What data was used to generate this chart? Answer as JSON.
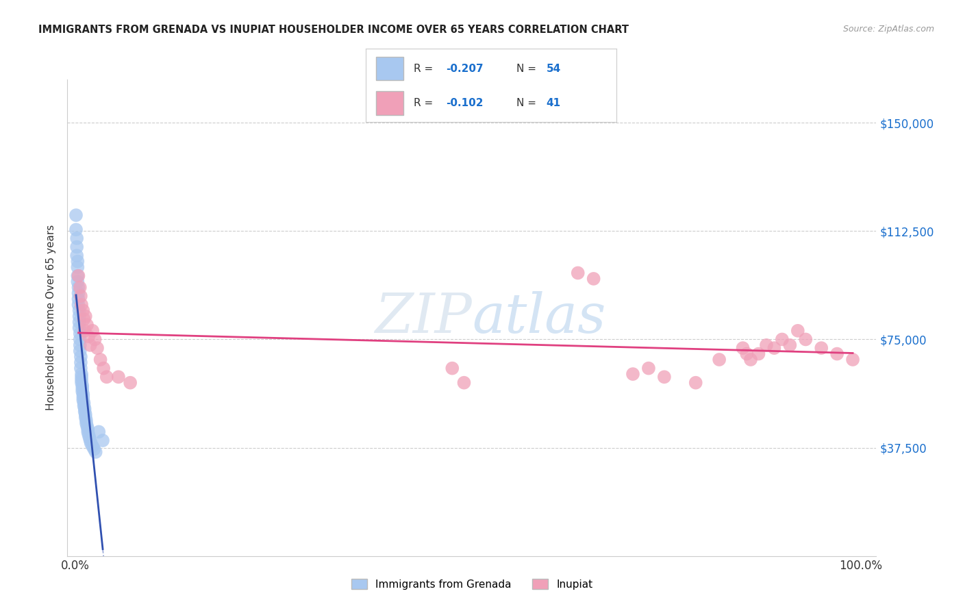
{
  "title": "IMMIGRANTS FROM GRENADA VS INUPIAT HOUSEHOLDER INCOME OVER 65 YEARS CORRELATION CHART",
  "source": "Source: ZipAtlas.com",
  "ylabel": "Householder Income Over 65 years",
  "y_tick_labels": [
    "$37,500",
    "$75,000",
    "$112,500",
    "$150,000"
  ],
  "y_tick_values": [
    37500,
    75000,
    112500,
    150000
  ],
  "xlim": [
    -0.01,
    1.02
  ],
  "ylim": [
    0,
    165000
  ],
  "legend_label1": "Immigrants from Grenada",
  "legend_label2": "Inupiat",
  "r1": "-0.207",
  "n1": "54",
  "r2": "-0.102",
  "n2": "41",
  "color1": "#a8c8f0",
  "color2": "#f0a0b8",
  "line_color1": "#3050b0",
  "line_color2": "#e04080",
  "grenada_x": [
    0.001,
    0.001,
    0.002,
    0.002,
    0.002,
    0.003,
    0.003,
    0.003,
    0.003,
    0.004,
    0.004,
    0.004,
    0.004,
    0.005,
    0.005,
    0.005,
    0.005,
    0.006,
    0.006,
    0.006,
    0.006,
    0.007,
    0.007,
    0.007,
    0.008,
    0.008,
    0.008,
    0.008,
    0.009,
    0.009,
    0.009,
    0.01,
    0.01,
    0.01,
    0.011,
    0.011,
    0.012,
    0.012,
    0.013,
    0.013,
    0.014,
    0.014,
    0.015,
    0.016,
    0.016,
    0.017,
    0.018,
    0.019,
    0.02,
    0.022,
    0.024,
    0.026,
    0.03,
    0.035
  ],
  "grenada_y": [
    118000,
    113000,
    110000,
    107000,
    104000,
    102000,
    100000,
    97000,
    95000,
    93000,
    91000,
    89000,
    87000,
    85000,
    83000,
    81000,
    79000,
    77000,
    75000,
    73000,
    71000,
    69000,
    67000,
    65000,
    63000,
    62000,
    61000,
    60000,
    59000,
    58000,
    57000,
    56000,
    55000,
    54000,
    53000,
    52000,
    51000,
    50000,
    49000,
    48000,
    47000,
    46000,
    45000,
    44000,
    43000,
    42000,
    41000,
    40000,
    39000,
    38000,
    37000,
    36000,
    43000,
    40000
  ],
  "inupiat_x": [
    0.004,
    0.006,
    0.007,
    0.008,
    0.01,
    0.011,
    0.012,
    0.013,
    0.015,
    0.017,
    0.019,
    0.022,
    0.025,
    0.028,
    0.032,
    0.036,
    0.04,
    0.055,
    0.07,
    0.48,
    0.495,
    0.64,
    0.66,
    0.71,
    0.73,
    0.75,
    0.79,
    0.82,
    0.85,
    0.855,
    0.86,
    0.87,
    0.88,
    0.89,
    0.9,
    0.91,
    0.92,
    0.93,
    0.95,
    0.97,
    0.99
  ],
  "inupiat_y": [
    97000,
    93000,
    90000,
    87000,
    85000,
    82000,
    78000,
    83000,
    80000,
    76000,
    73000,
    78000,
    75000,
    72000,
    68000,
    65000,
    62000,
    62000,
    60000,
    65000,
    60000,
    98000,
    96000,
    63000,
    65000,
    62000,
    60000,
    68000,
    72000,
    70000,
    68000,
    70000,
    73000,
    72000,
    75000,
    73000,
    78000,
    75000,
    72000,
    70000,
    68000
  ]
}
